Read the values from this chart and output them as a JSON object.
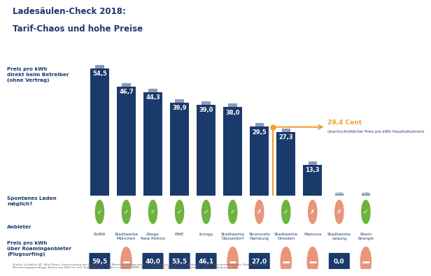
{
  "title_line1": "Ladesäulen-Check 2018:",
  "title_line2": "Tarif-Chaos und hohe Preise",
  "background_color": "#ffffff",
  "bar_color": "#1a3a6b",
  "bar_cap_color": "#8899bb",
  "reference_line_value": 29.4,
  "reference_line_color": "#f0a030",
  "reference_line_label": "29,4 Cent",
  "reference_line_sublabel": "(durchschnittlicher Preis pro kWh Haushaltsstrom)",
  "categories": [
    "EnBW",
    "Stadtwerke\nMünchen",
    "Allego\nNew Motion",
    "EWE",
    "Innogy",
    "Stadtwerke\nDüsseldorf",
    "Stromnetz\nHamburg",
    "Stadtwerke\nDresden",
    "Mainova",
    "Stadtwerke\nLeipzig",
    "Rhein\nEnergie"
  ],
  "direct_values": [
    54.5,
    46.7,
    44.3,
    39.9,
    39.0,
    38.0,
    29.5,
    27.3,
    13.3,
    0.0,
    0.0
  ],
  "roaming_values": [
    59.5,
    null,
    40.0,
    53.5,
    46.1,
    null,
    27.0,
    null,
    null,
    0.0,
    null
  ],
  "spontaneous": [
    true,
    true,
    true,
    true,
    true,
    true,
    false,
    true,
    false,
    false,
    true
  ],
  "label_preis_direct": "Preis pro kWh\ndirekt beim Betreiber\n(ohne Vertrag)",
  "label_spontan": "Spontanes Laden\nmöglich?",
  "label_anbieter": "Anbieter",
  "label_preis_roaming": "Preis pro kWh\nüber Roaminganbieter\n(Plugsurfing)",
  "source_text": "Quelle: Lichtblick SE / Alle Daten: Untersuchung des Recherche- und Marktforschungsunternehmens statista auf den Webseiten der Ladeinfrastrukturbetreiber, Stand: Juni 2018",
  "source_text2": "Berechnungsgrundlage: Kosten pro kWh für eine Tankfüllung für 100km mit einem BMW i3 (ca. 15kWh) AC-3-Stufe ohne Vertragsbindung / Ladedauer 1:36h",
  "check_color_yes": "#6db33f",
  "check_color_no": "#e8957a",
  "tile_color": "#1a3a6b",
  "text_color": "#1a3a6b"
}
